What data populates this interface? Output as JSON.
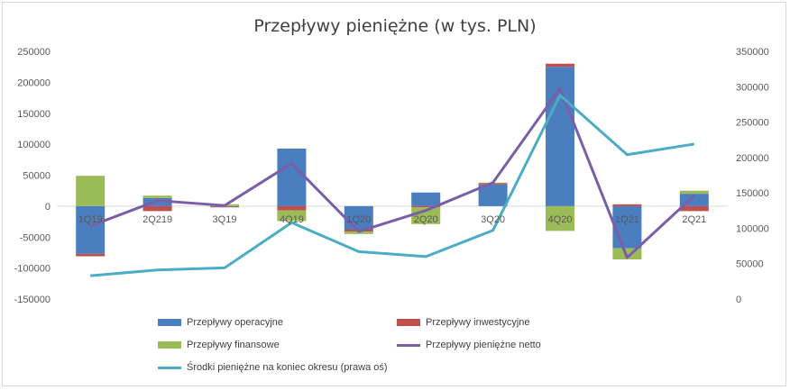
{
  "chart_data": {
    "type": "bar",
    "title": "Przepływy pieniężne (w tys. PLN)",
    "categories": [
      "1Q19",
      "2Q219",
      "3Q19",
      "4Q19",
      "1Q20",
      "2Q20",
      "3Q20",
      "4Q20",
      "1Q21",
      "2Q21"
    ],
    "stacked": true,
    "y_left": {
      "min": -150000,
      "max": 250000,
      "step": 50000,
      "ticks": [
        "250000",
        "200000",
        "150000",
        "100000",
        "50000",
        "0",
        "-50000",
        "-100000",
        "-150000"
      ]
    },
    "y_right": {
      "min": 0,
      "max": 350000,
      "step": 50000,
      "ticks": [
        "350000",
        "300000",
        "250000",
        "200000",
        "150000",
        "100000",
        "50000",
        "0"
      ]
    },
    "series": [
      {
        "name": "Przepływy operacyjne",
        "kind": "bar",
        "axis": "left",
        "color": "#4a7ebf",
        "values": [
          -77000,
          13000,
          -1000,
          93000,
          -38000,
          22000,
          35000,
          225000,
          -68000,
          20000
        ]
      },
      {
        "name": "Przepływy inwestycyjne",
        "kind": "bar",
        "axis": "left",
        "color": "#c0504d",
        "values": [
          -4000,
          -8000,
          -1000,
          -7000,
          -3000,
          -2000,
          2000,
          5000,
          3000,
          -8000
        ]
      },
      {
        "name": "Przepływy finansowe",
        "kind": "bar",
        "axis": "left",
        "color": "#9bbb59",
        "values": [
          49000,
          4000,
          3000,
          -17000,
          -4000,
          -27000,
          1000,
          -40000,
          -18000,
          5000
        ]
      },
      {
        "name": "Przepływy pieniężne netto",
        "kind": "line",
        "axis": "left",
        "color": "#7a5ea8",
        "values": [
          -32000,
          9000,
          1000,
          69000,
          -41000,
          -7000,
          38000,
          190000,
          -83000,
          17000
        ]
      },
      {
        "name": "Środki pieniężne na koniec okresu (prawa oś)",
        "kind": "line",
        "axis": "right",
        "color": "#4bacc6",
        "values": [
          33000,
          41000,
          44000,
          108000,
          67000,
          60000,
          97000,
          288000,
          204000,
          219000
        ]
      }
    ],
    "legend_position": "bottom",
    "grid": false
  }
}
